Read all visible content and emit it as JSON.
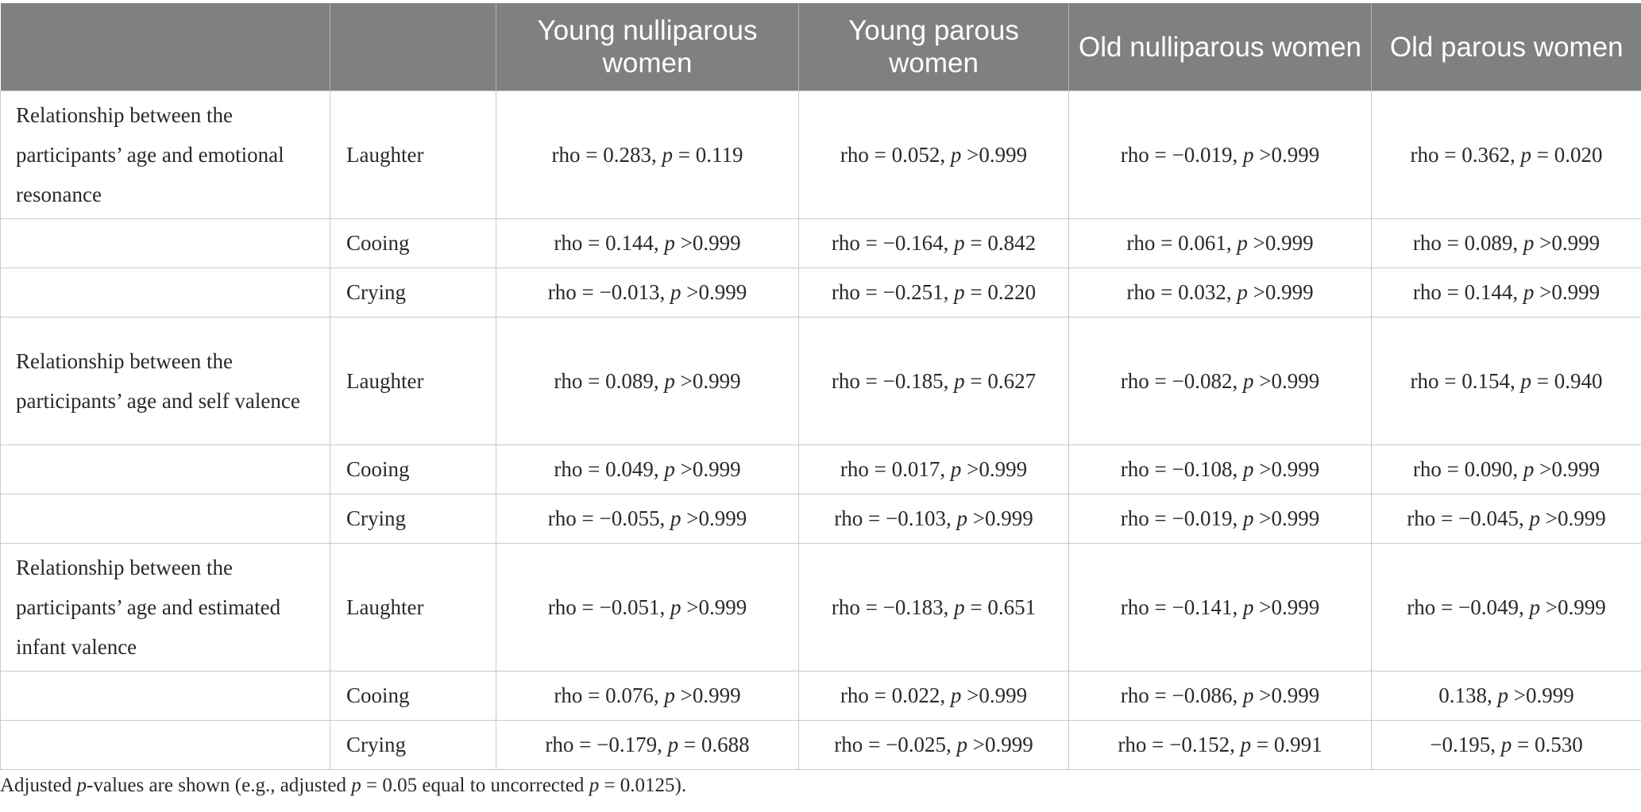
{
  "header": {
    "blank1": "",
    "blank2": "",
    "col1": "Young nulliparous women",
    "col2": "Young parous women",
    "col3": "Old nulliparous women",
    "col4": "Old parous women"
  },
  "stat_labels": {
    "rho_eq": "rho = ",
    "p": "p"
  },
  "groups": [
    {
      "label": "Relationship between the participants’ age and emotional resonance",
      "rows": [
        {
          "sound": "Laughter",
          "cells": [
            {
              "rho": "0.283",
              "op": "=",
              "p": "0.119"
            },
            {
              "rho": "0.052",
              "op": ">",
              "p": "0.999"
            },
            {
              "rho": "−0.019",
              "op": ">",
              "p": "0.999"
            },
            {
              "rho": "0.362",
              "op": "=",
              "p": "0.020"
            }
          ]
        },
        {
          "sound": "Cooing",
          "cells": [
            {
              "rho": "0.144",
              "op": ">",
              "p": "0.999"
            },
            {
              "rho": "−0.164",
              "op": "=",
              "p": "0.842"
            },
            {
              "rho": "0.061",
              "op": ">",
              "p": "0.999"
            },
            {
              "rho": "0.089",
              "op": ">",
              "p": "0.999"
            }
          ]
        },
        {
          "sound": "Crying",
          "cells": [
            {
              "rho": "−0.013",
              "op": ">",
              "p": "0.999"
            },
            {
              "rho": "−0.251",
              "op": "=",
              "p": "0.220"
            },
            {
              "rho": "0.032",
              "op": ">",
              "p": "0.999"
            },
            {
              "rho": "0.144",
              "op": ">",
              "p": "0.999"
            }
          ]
        }
      ]
    },
    {
      "label": "Relationship between the participants’ age and self valence",
      "rows": [
        {
          "sound": "Laughter",
          "cells": [
            {
              "rho": "0.089",
              "op": ">",
              "p": "0.999"
            },
            {
              "rho": "−0.185",
              "op": "=",
              "p": "0.627"
            },
            {
              "rho": "−0.082",
              "op": ">",
              "p": "0.999"
            },
            {
              "rho": "0.154",
              "op": "=",
              "p": "0.940"
            }
          ]
        },
        {
          "sound": "Cooing",
          "cells": [
            {
              "rho": "0.049",
              "op": ">",
              "p": "0.999"
            },
            {
              "rho": "0.017",
              "op": ">",
              "p": "0.999"
            },
            {
              "rho": "−0.108",
              "op": ">",
              "p": "0.999"
            },
            {
              "rho": "0.090",
              "op": ">",
              "p": "0.999"
            }
          ]
        },
        {
          "sound": "Crying",
          "cells": [
            {
              "rho": "−0.055",
              "op": ">",
              "p": "0.999"
            },
            {
              "rho": "−0.103",
              "op": ">",
              "p": "0.999"
            },
            {
              "rho": "−0.019",
              "op": ">",
              "p": "0.999"
            },
            {
              "rho": "−0.045",
              "op": ">",
              "p": "0.999"
            }
          ]
        }
      ]
    },
    {
      "label": "Relationship between the participants’ age and estimated infant valence",
      "rows": [
        {
          "sound": "Laughter",
          "cells": [
            {
              "rho": "−0.051",
              "op": ">",
              "p": "0.999"
            },
            {
              "rho": "−0.183",
              "op": "=",
              "p": "0.651"
            },
            {
              "rho": "−0.141",
              "op": ">",
              "p": "0.999"
            },
            {
              "rho": "−0.049",
              "op": ">",
              "p": "0.999"
            }
          ]
        },
        {
          "sound": "Cooing",
          "cells": [
            {
              "rho": "0.076",
              "op": ">",
              "p": "0.999"
            },
            {
              "rho": "0.022",
              "op": ">",
              "p": "0.999"
            },
            {
              "rho": "−0.086",
              "op": ">",
              "p": "0.999"
            },
            {
              "value": "0.138",
              "op": ">",
              "p": "0.999"
            }
          ]
        },
        {
          "sound": "Crying",
          "cells": [
            {
              "rho": "−0.179",
              "op": "=",
              "p": "0.688"
            },
            {
              "rho": "−0.025",
              "op": ">",
              "p": "0.999"
            },
            {
              "rho": "−0.152",
              "op": "=",
              "p": "0.991"
            },
            {
              "value": "−0.195",
              "op": "=",
              "p": "0.530"
            }
          ]
        }
      ]
    }
  ],
  "footnote": {
    "pre": "Adjusted ",
    "p1": "p",
    "mid": "-values are shown (e.g., adjusted ",
    "p2": "p",
    "eq1": " = 0.05 equal to uncorrected ",
    "p3": "p",
    "eq2": " = 0.0125)."
  }
}
